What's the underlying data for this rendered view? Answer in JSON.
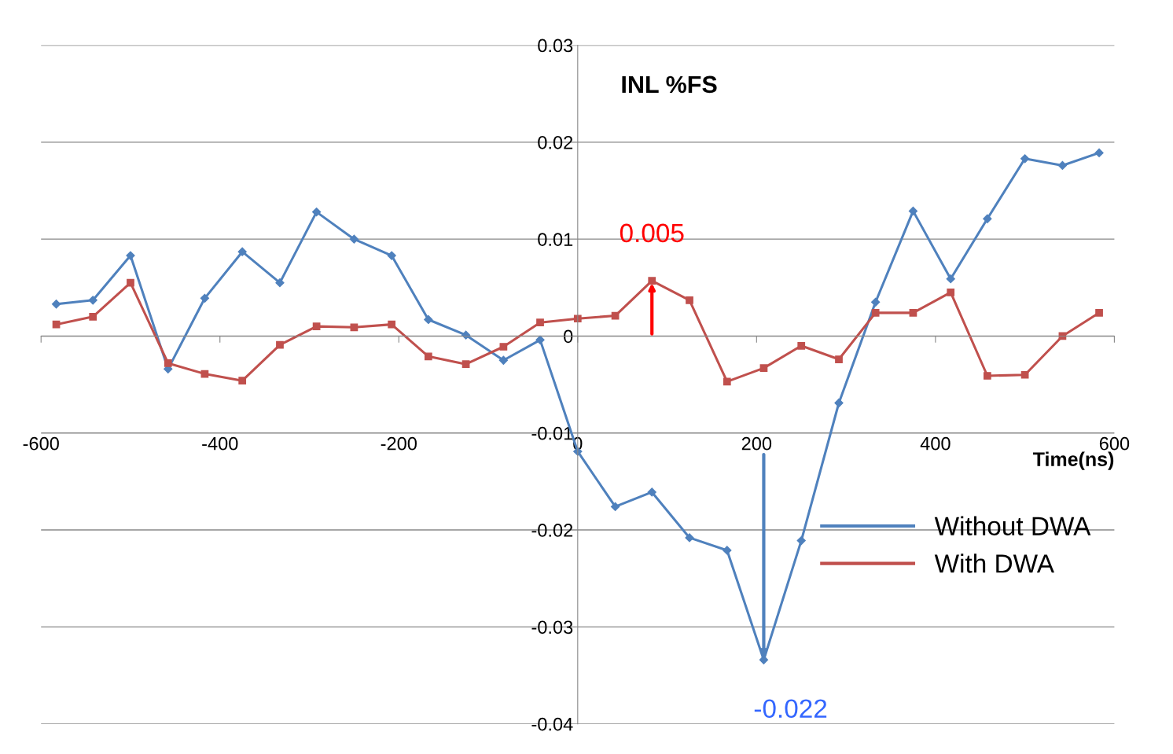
{
  "chart_data": {
    "type": "line",
    "xlabel": "Time(ns)",
    "ylabel": "INL %FS",
    "x": [
      -583,
      -542,
      -500,
      -458,
      -417,
      -375,
      -333,
      -292,
      -250,
      -208,
      -167,
      -125,
      -83,
      -42,
      0,
      42,
      83,
      125,
      167,
      208,
      250,
      292,
      333,
      375,
      417,
      458,
      500,
      542,
      583
    ],
    "series": [
      {
        "name": "Without DWA",
        "color": "#4f81bd",
        "marker": "diamond",
        "values": [
          0.0033,
          0.0037,
          0.0083,
          -0.0034,
          0.0039,
          0.0087,
          0.0055,
          0.0128,
          0.01,
          0.0083,
          0.0017,
          0.0001,
          -0.0025,
          -0.0004,
          -0.0119,
          -0.0176,
          -0.0161,
          -0.0208,
          -0.0221,
          -0.0334,
          -0.0211,
          -0.0069,
          0.0035,
          0.0129,
          0.0059,
          0.0121,
          0.0183,
          0.0176,
          0.0189
        ]
      },
      {
        "name": "With DWA",
        "color": "#c0504d",
        "marker": "square",
        "values": [
          0.0012,
          0.002,
          0.0055,
          -0.0028,
          -0.0039,
          -0.0046,
          -0.0009,
          0.001,
          0.0009,
          0.0012,
          -0.0021,
          -0.0029,
          -0.0011,
          0.0014,
          0.0018,
          0.0021,
          0.0057,
          0.0037,
          -0.0047,
          -0.0033,
          -0.001,
          -0.0024,
          0.0024,
          0.0024,
          0.0045,
          -0.0041,
          -0.004,
          0.0,
          0.0024
        ]
      }
    ],
    "annotations": [
      {
        "text": "0.005",
        "x": 83,
        "y": 0.0057
      },
      {
        "text": "-0.022",
        "x": 208,
        "y": -0.0334
      }
    ],
    "xlim": [
      -600,
      600
    ],
    "xticks": [
      -600,
      -400,
      -200,
      0,
      200,
      400,
      600
    ],
    "ylim": [
      -0.04,
      0.03
    ],
    "yticks": [
      -0.04,
      -0.03,
      -0.02,
      -0.01,
      0,
      0.01,
      0.02,
      0.03
    ],
    "grid": "y",
    "legend": "lower right"
  }
}
